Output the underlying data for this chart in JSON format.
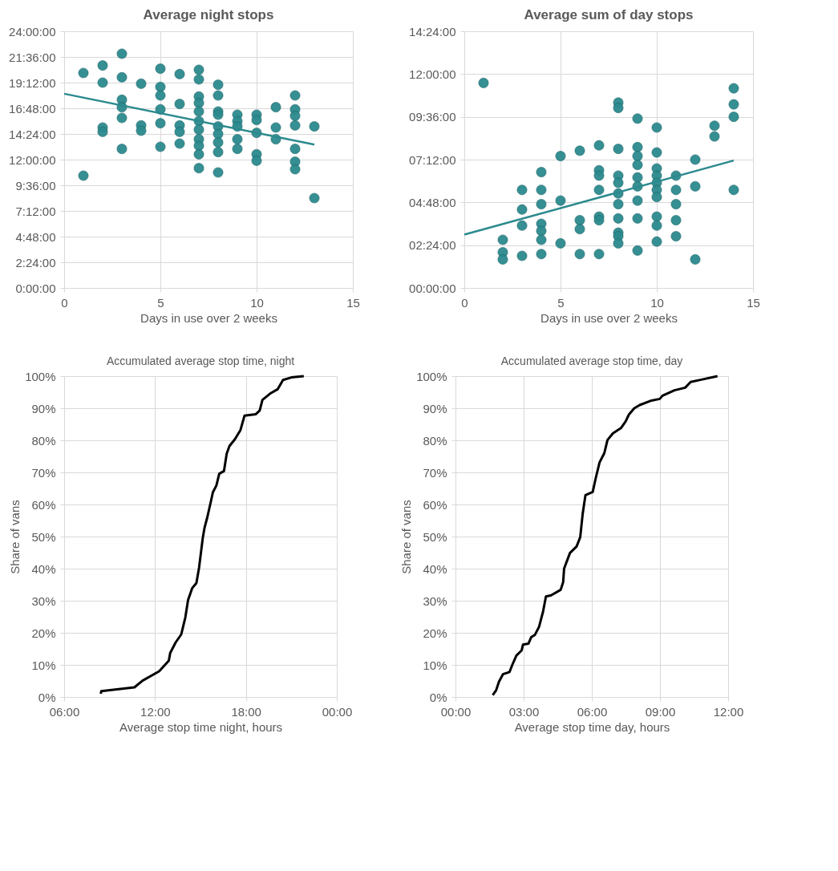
{
  "chart_data": [
    {
      "type": "scatter",
      "title": "Average night stops",
      "xlabel": "Days in use over 2 weeks",
      "grid": true,
      "xlim": [
        0,
        15
      ],
      "xticks": [
        0,
        5,
        10,
        15
      ],
      "ylim": [
        0,
        24
      ],
      "yticks": [
        {
          "value": 0,
          "label": "0:00:00"
        },
        {
          "value": 2.4,
          "label": "2:24:00"
        },
        {
          "value": 4.8,
          "label": "4:48:00"
        },
        {
          "value": 7.2,
          "label": "7:12:00"
        },
        {
          "value": 9.6,
          "label": "9:36:00"
        },
        {
          "value": 12,
          "label": "12:00:00"
        },
        {
          "value": 14.4,
          "label": "14:24:00"
        },
        {
          "value": 16.8,
          "label": "16:48:00"
        },
        {
          "value": 19.2,
          "label": "19:12:00"
        },
        {
          "value": 21.6,
          "label": "21:36:00"
        },
        {
          "value": 24,
          "label": "24:00:00"
        }
      ],
      "series": [
        {
          "type": "scatter",
          "color": "#2b8a8e",
          "x": [
            1,
            1,
            2,
            2,
            2,
            2,
            3,
            3,
            3,
            3,
            3,
            3,
            4,
            4,
            4,
            5,
            5,
            5,
            5,
            5,
            5,
            6,
            6,
            6,
            6,
            6,
            7,
            7,
            7,
            7,
            7,
            7,
            7,
            7,
            7,
            7,
            7,
            8,
            8,
            8,
            8,
            8,
            8,
            8,
            8,
            8,
            9,
            9,
            9,
            9,
            9,
            10,
            10,
            10,
            10,
            10,
            11,
            11,
            11,
            12,
            12,
            12,
            12,
            12,
            12,
            12,
            13,
            13
          ],
          "values": [
            20.1,
            10.5,
            20.8,
            19.2,
            15.0,
            14.6,
            21.9,
            19.7,
            17.6,
            16.9,
            15.9,
            13.0,
            19.1,
            15.2,
            14.7,
            20.5,
            18.8,
            18.0,
            16.7,
            15.4,
            13.2,
            20.0,
            17.2,
            15.2,
            14.6,
            13.5,
            20.4,
            19.5,
            17.9,
            17.3,
            16.5,
            15.6,
            14.8,
            13.9,
            13.3,
            12.5,
            11.2,
            19.0,
            18.0,
            16.5,
            16.2,
            15.1,
            14.4,
            13.6,
            12.7,
            10.8,
            16.2,
            15.6,
            15.1,
            13.9,
            13.0,
            16.2,
            15.7,
            14.5,
            12.5,
            11.9,
            16.9,
            15.0,
            13.9,
            18.0,
            16.7,
            16.1,
            15.2,
            13.0,
            11.8,
            11.1,
            15.1,
            8.4
          ]
        },
        {
          "type": "line",
          "color": "#2b8a8e",
          "x": [
            0,
            13
          ],
          "values": [
            18.16,
            13.41
          ]
        }
      ]
    },
    {
      "type": "scatter",
      "title": "Average sum of day stops",
      "xlabel": "Days in use over 2 weeks",
      "grid": true,
      "xlim": [
        0,
        15
      ],
      "xticks": [
        0,
        5,
        10,
        15
      ],
      "ylim": [
        0,
        14.4
      ],
      "yticks": [
        {
          "value": 0,
          "label": "00:00:00"
        },
        {
          "value": 2.4,
          "label": "02:24:00"
        },
        {
          "value": 4.8,
          "label": "04:48:00"
        },
        {
          "value": 7.2,
          "label": "07:12:00"
        },
        {
          "value": 9.6,
          "label": "09:36:00"
        },
        {
          "value": 12,
          "label": "12:00:00"
        },
        {
          "value": 14.4,
          "label": "14:24:00"
        }
      ],
      "series": [
        {
          "type": "scatter",
          "color": "#2b8a8e",
          "x": [
            1,
            2,
            2,
            2,
            3,
            3,
            3,
            3,
            4,
            4,
            4,
            4,
            4,
            4,
            4,
            5,
            5,
            5,
            6,
            6,
            6,
            6,
            7,
            7,
            7,
            7,
            7,
            7,
            7,
            8,
            8,
            8,
            8,
            8,
            8,
            8,
            8,
            8,
            8,
            8,
            9,
            9,
            9,
            9,
            9,
            9,
            9,
            9,
            9,
            10,
            10,
            10,
            10,
            10,
            10,
            10,
            10,
            10,
            10,
            11,
            11,
            11,
            11,
            11,
            12,
            12,
            12,
            13,
            13,
            14,
            14,
            14,
            14
          ],
          "values": [
            11.5,
            2.7,
            2.0,
            1.6,
            5.5,
            4.4,
            3.5,
            1.8,
            6.5,
            5.5,
            4.7,
            3.6,
            3.2,
            2.7,
            1.9,
            7.4,
            4.9,
            2.5,
            7.7,
            3.8,
            3.3,
            1.9,
            8.0,
            6.6,
            6.3,
            5.5,
            4.0,
            3.8,
            1.9,
            10.4,
            10.1,
            7.8,
            6.3,
            5.9,
            5.3,
            4.7,
            3.9,
            3.1,
            2.9,
            2.5,
            9.5,
            7.9,
            7.4,
            6.9,
            6.2,
            5.7,
            4.9,
            3.9,
            2.1,
            9.0,
            7.6,
            6.7,
            6.3,
            5.9,
            5.5,
            5.1,
            4.0,
            3.5,
            2.6,
            6.3,
            5.5,
            4.7,
            3.8,
            2.9,
            7.2,
            5.7,
            1.6,
            9.1,
            8.5,
            11.2,
            10.3,
            9.6,
            5.5
          ]
        },
        {
          "type": "line",
          "color": "#2b8a8e",
          "x": [
            0,
            14
          ],
          "values": [
            2.99,
            7.15
          ]
        }
      ]
    },
    {
      "type": "line",
      "title": "Accumulated average stop time, night",
      "xlabel": "Average stop time night, hours",
      "ylabel": "Share of vans",
      "grid": true,
      "xlim": [
        6,
        24
      ],
      "xticks": [
        {
          "value": 6,
          "label": "06:00"
        },
        {
          "value": 12,
          "label": "12:00"
        },
        {
          "value": 18,
          "label": "18:00"
        },
        {
          "value": 24,
          "label": "00:00"
        }
      ],
      "ylim": [
        0,
        100
      ],
      "yticks": [
        {
          "value": 0,
          "label": "0%"
        },
        {
          "value": 10,
          "label": "10%"
        },
        {
          "value": 20,
          "label": "20%"
        },
        {
          "value": 30,
          "label": "30%"
        },
        {
          "value": 40,
          "label": "40%"
        },
        {
          "value": 50,
          "label": "50%"
        },
        {
          "value": 60,
          "label": "60%"
        },
        {
          "value": 70,
          "label": "70%"
        },
        {
          "value": 80,
          "label": "80%"
        },
        {
          "value": 90,
          "label": "90%"
        },
        {
          "value": 100,
          "label": "100%"
        }
      ],
      "series": [
        {
          "type": "line",
          "color": "#000000",
          "x": [
            8.42,
            8.45,
            10.64,
            11.18,
            12.27,
            12.91,
            13.0,
            13.36,
            13.73,
            14.0,
            14.18,
            14.45,
            14.73,
            14.91,
            15.15,
            15.27,
            15.45,
            15.69,
            15.82,
            16.05,
            16.24,
            16.55,
            16.73,
            16.91,
            17.27,
            17.64,
            17.91,
            18.64,
            18.91,
            19.09,
            19.64,
            20.09,
            20.45,
            21.0,
            21.82
          ],
          "values": [
            1.0,
            1.8,
            3.0,
            5.1,
            8.0,
            11.3,
            13.7,
            17.0,
            19.5,
            24.8,
            30.2,
            33.9,
            35.5,
            40.4,
            49.5,
            52.8,
            56.0,
            61.0,
            63.8,
            65.9,
            69.6,
            70.4,
            75.8,
            78.2,
            80.3,
            83.2,
            87.7,
            88.1,
            89.3,
            92.6,
            94.7,
            95.9,
            98.8,
            99.6,
            100
          ]
        }
      ]
    },
    {
      "type": "line",
      "title": "Accumulated average stop time, day",
      "xlabel": "Average stop time day, hours",
      "ylabel": "Share of vans",
      "grid": true,
      "xlim": [
        0,
        12
      ],
      "xticks": [
        {
          "value": 0,
          "label": "00:00"
        },
        {
          "value": 3,
          "label": "03:00"
        },
        {
          "value": 6,
          "label": "06:00"
        },
        {
          "value": 9,
          "label": "09:00"
        },
        {
          "value": 12,
          "label": "12:00"
        }
      ],
      "ylim": [
        0,
        100
      ],
      "yticks": [
        {
          "value": 0,
          "label": "0%"
        },
        {
          "value": 10,
          "label": "10%"
        },
        {
          "value": 20,
          "label": "20%"
        },
        {
          "value": 30,
          "label": "30%"
        },
        {
          "value": 40,
          "label": "40%"
        },
        {
          "value": 50,
          "label": "50%"
        },
        {
          "value": 60,
          "label": "60%"
        },
        {
          "value": 70,
          "label": "70%"
        },
        {
          "value": 80,
          "label": "80%"
        },
        {
          "value": 90,
          "label": "90%"
        },
        {
          "value": 100,
          "label": "100%"
        }
      ],
      "series": [
        {
          "type": "line",
          "color": "#000000",
          "x": [
            1.64,
            1.79,
            1.91,
            2.09,
            2.38,
            2.5,
            2.68,
            2.91,
            2.97,
            3.21,
            3.33,
            3.5,
            3.68,
            3.86,
            3.98,
            4.21,
            4.63,
            4.74,
            4.78,
            5.04,
            5.33,
            5.49,
            5.6,
            5.72,
            6.04,
            6.16,
            6.34,
            6.55,
            6.69,
            6.93,
            7.28,
            7.49,
            7.63,
            7.87,
            8.11,
            8.58,
            8.99,
            9.11,
            9.64,
            10.11,
            10.35,
            10.82,
            11.53
          ],
          "values": [
            0.6,
            2.1,
            4.7,
            7.1,
            7.8,
            10.0,
            12.9,
            14.5,
            16.3,
            16.6,
            18.6,
            19.4,
            21.9,
            26.8,
            31.3,
            31.7,
            33.4,
            35.8,
            40.0,
            44.9,
            46.9,
            49.8,
            57.2,
            62.9,
            63.9,
            67.8,
            73.1,
            76.0,
            80.1,
            82.2,
            83.8,
            85.9,
            88.0,
            90.0,
            91.0,
            92.3,
            92.9,
            93.9,
            95.6,
            96.4,
            98.2,
            98.9,
            100
          ]
        }
      ]
    }
  ]
}
